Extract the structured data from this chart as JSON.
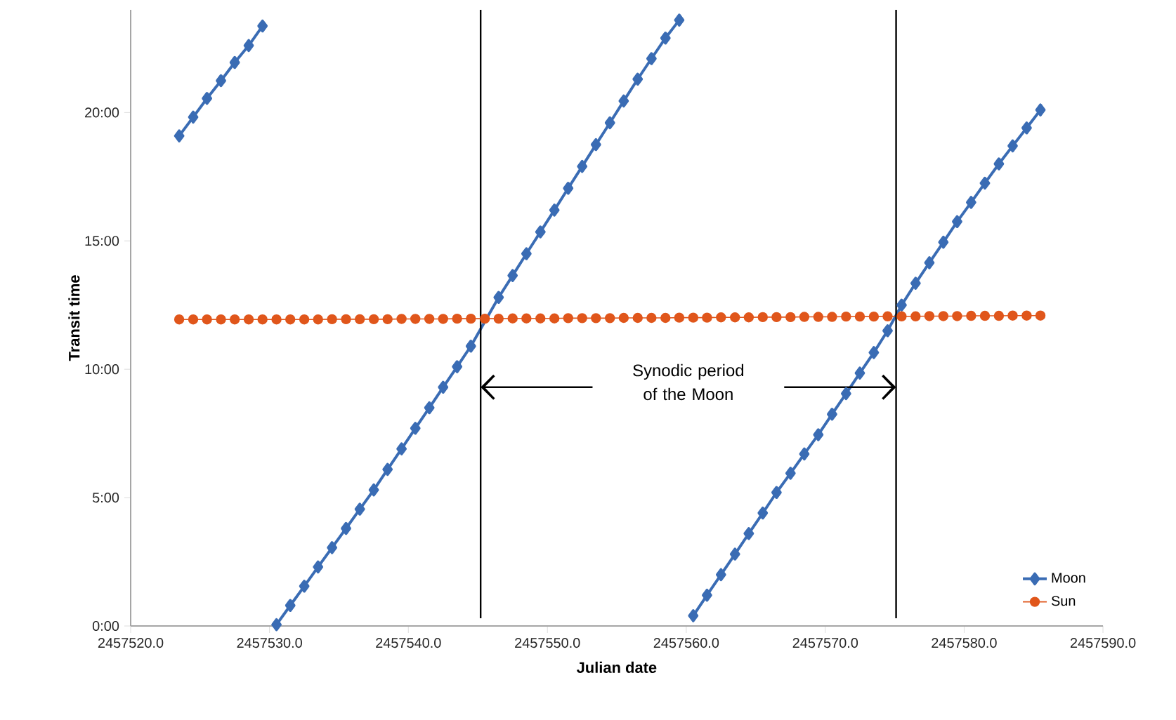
{
  "chart_data": {
    "type": "line",
    "xlabel": "Julian date",
    "ylabel": "Transit time",
    "xlim": [
      2457520,
      2457590
    ],
    "xticks": [
      {
        "value": 2457520,
        "label": "2457520.0"
      },
      {
        "value": 2457530,
        "label": "2457530.0"
      },
      {
        "value": 2457540,
        "label": "2457540.0"
      },
      {
        "value": 2457550,
        "label": "2457550.0"
      },
      {
        "value": 2457560,
        "label": "2457560.0"
      },
      {
        "value": 2457570,
        "label": "2457570.0"
      },
      {
        "value": 2457580,
        "label": "2457580.0"
      },
      {
        "value": 2457590,
        "label": "2457590.0"
      }
    ],
    "ylim": [
      0,
      24
    ],
    "yticks": [
      {
        "value": 0,
        "label": "0:00"
      },
      {
        "value": 5,
        "label": "5:00"
      },
      {
        "value": 10,
        "label": "10:00"
      },
      {
        "value": 15,
        "label": "15:00"
      },
      {
        "value": 20,
        "label": "20:00"
      }
    ],
    "series": [
      {
        "name": "Moon",
        "color": "#3a6cb4",
        "marker": "diamond",
        "x": [
          2457523.5,
          2457524.5,
          2457525.5,
          2457526.5,
          2457527.5,
          2457528.5,
          2457529.5
        ],
        "values": [
          19.09,
          19.82,
          20.55,
          21.24,
          21.95,
          22.61,
          23.37
        ]
      },
      {
        "color": "#3a6cb4",
        "marker": "diamond",
        "x": [
          2457530.5,
          2457531.5,
          2457532.5,
          2457533.5,
          2457534.5,
          2457535.5,
          2457536.5,
          2457537.5,
          2457538.5,
          2457539.5,
          2457540.5,
          2457541.5,
          2457542.5,
          2457543.5,
          2457544.5,
          2457545.5,
          2457546.5,
          2457547.5,
          2457548.5,
          2457549.5,
          2457550.5,
          2457551.5,
          2457552.5,
          2457553.5,
          2457554.5,
          2457555.5,
          2457556.5,
          2457557.5,
          2457558.5,
          2457559.5
        ],
        "values": [
          0.05,
          0.8,
          1.55,
          2.3,
          3.05,
          3.8,
          4.55,
          5.3,
          6.1,
          6.9,
          7.7,
          8.5,
          9.3,
          10.1,
          10.9,
          null,
          12.8,
          13.65,
          14.5,
          15.35,
          16.2,
          17.05,
          17.9,
          18.75,
          19.6,
          20.45,
          21.3,
          22.1,
          22.9,
          23.6
        ]
      },
      {
        "color": "#3a6cb4",
        "marker": "diamond",
        "x": [
          2457560.5,
          2457561.5,
          2457562.5,
          2457563.5,
          2457564.5,
          2457565.5,
          2457566.5,
          2457567.5,
          2457568.5,
          2457569.5,
          2457570.5,
          2457571.5,
          2457572.5,
          2457573.5,
          2457574.5,
          2457575.5,
          2457576.5,
          2457577.5,
          2457578.5,
          2457579.5,
          2457580.5,
          2457581.5,
          2457582.5,
          2457583.5,
          2457584.5,
          2457585.5
        ],
        "values": [
          0.4,
          1.2,
          2.0,
          2.8,
          3.6,
          4.4,
          5.2,
          5.95,
          6.7,
          7.45,
          8.25,
          9.05,
          9.85,
          10.65,
          11.5,
          12.5,
          13.35,
          14.15,
          14.95,
          15.75,
          16.5,
          17.25,
          18.0,
          18.7,
          19.4,
          20.1
        ]
      },
      {
        "name": "Sun",
        "color": "#e0561b",
        "marker": "circle",
        "x": [
          2457523.5,
          2457524.5,
          2457525.5,
          2457526.5,
          2457527.5,
          2457528.5,
          2457529.5,
          2457530.5,
          2457531.5,
          2457532.5,
          2457533.5,
          2457534.5,
          2457535.5,
          2457536.5,
          2457537.5,
          2457538.5,
          2457539.5,
          2457540.5,
          2457541.5,
          2457542.5,
          2457543.5,
          2457544.5,
          2457545.5,
          2457546.5,
          2457547.5,
          2457548.5,
          2457549.5,
          2457550.5,
          2457551.5,
          2457552.5,
          2457553.5,
          2457554.5,
          2457555.5,
          2457556.5,
          2457557.5,
          2457558.5,
          2457559.5,
          2457560.5,
          2457561.5,
          2457562.5,
          2457563.5,
          2457564.5,
          2457565.5,
          2457566.5,
          2457567.5,
          2457568.5,
          2457569.5,
          2457570.5,
          2457571.5,
          2457572.5,
          2457573.5,
          2457574.5,
          2457575.5,
          2457576.5,
          2457577.5,
          2457578.5,
          2457579.5,
          2457580.5,
          2457581.5,
          2457582.5,
          2457583.5,
          2457584.5,
          2457585.5
        ],
        "values": [
          11.94,
          11.94,
          11.94,
          11.94,
          11.94,
          11.94,
          11.94,
          11.94,
          11.94,
          11.94,
          11.94,
          11.95,
          11.95,
          11.95,
          11.95,
          11.95,
          11.96,
          11.96,
          11.96,
          11.96,
          11.97,
          11.97,
          11.97,
          11.97,
          11.98,
          11.98,
          11.98,
          11.98,
          11.99,
          11.99,
          11.99,
          11.99,
          12.0,
          12.0,
          12.0,
          12.0,
          12.01,
          12.01,
          12.01,
          12.02,
          12.02,
          12.02,
          12.03,
          12.03,
          12.03,
          12.04,
          12.04,
          12.04,
          12.05,
          12.05,
          12.05,
          12.06,
          12.06,
          12.06,
          12.07,
          12.07,
          12.07,
          12.08,
          12.08,
          12.08,
          12.09,
          12.09,
          12.09
        ]
      }
    ],
    "ref_lines": [
      {
        "axis": "x",
        "value": 2457545.2,
        "color": "#000000"
      },
      {
        "axis": "x",
        "value": 2457575.1,
        "color": "#000000"
      }
    ],
    "annotations": [
      "Synodic period of the Moon"
    ],
    "legend": "bottom right",
    "grid": false
  }
}
